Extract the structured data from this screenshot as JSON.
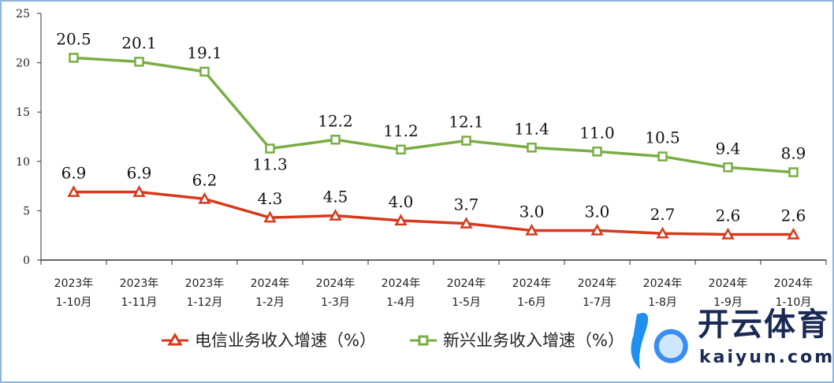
{
  "chart_data": {
    "type": "line",
    "categories": [
      [
        "2023年",
        "1-10月"
      ],
      [
        "2023年",
        "1-11月"
      ],
      [
        "2023年",
        "1-12月"
      ],
      [
        "2024年",
        "1-2月"
      ],
      [
        "2024年",
        "1-3月"
      ],
      [
        "2024年",
        "1-4月"
      ],
      [
        "2024年",
        "1-5月"
      ],
      [
        "2024年",
        "1-6月"
      ],
      [
        "2024年",
        "1-7月"
      ],
      [
        "2024年",
        "1-8月"
      ],
      [
        "2024年",
        "1-9月"
      ],
      [
        "2024年",
        "1-10月"
      ]
    ],
    "series": [
      {
        "name": "电信业务收入增速（%）",
        "color": "#d63a1c",
        "marker": "triangle",
        "values": [
          6.9,
          6.9,
          6.2,
          4.3,
          4.5,
          4.0,
          3.7,
          3.0,
          3.0,
          2.7,
          2.6,
          2.6
        ],
        "labels": [
          "6.9",
          "6.9",
          "6.2",
          "4.3",
          "4.5",
          "4.0",
          "3.7",
          "3.0",
          "3.0",
          "2.7",
          "2.6",
          "2.6"
        ]
      },
      {
        "name": "新兴业务收入增速（%）",
        "color": "#7aad45",
        "marker": "square",
        "values": [
          20.5,
          20.1,
          19.1,
          11.3,
          12.2,
          11.2,
          12.1,
          11.4,
          11.0,
          10.5,
          9.4,
          8.9
        ],
        "labels": [
          "20.5",
          "20.1",
          "19.1",
          "11.3",
          "12.2",
          "11.2",
          "12.1",
          "11.4",
          "11.0",
          "10.5",
          "9.4",
          "8.9"
        ]
      }
    ],
    "yticks": [
      "0",
      "5",
      "10",
      "15",
      "20",
      "25"
    ],
    "ylim": [
      0,
      25
    ],
    "legend": "bottom"
  },
  "watermark": {
    "cn": "开云体育",
    "en": "kaiyun.com"
  }
}
